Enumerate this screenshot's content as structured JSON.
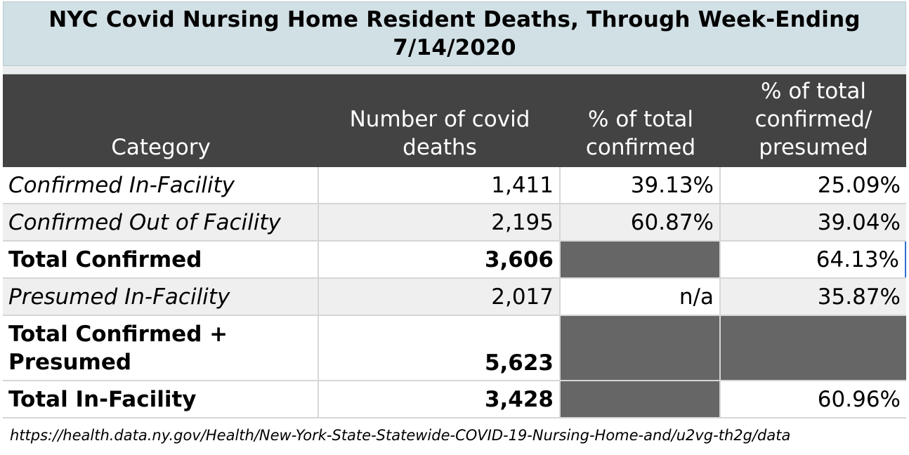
{
  "chart_data": {
    "type": "table",
    "title_line1": "NYC Covid Nursing Home Resident Deaths, Through Week-Ending",
    "title_line2": "7/14/2020",
    "columns": {
      "category": "Category",
      "deaths_line1": "Number of covid",
      "deaths_line2": "deaths",
      "pct_confirmed_line1": "% of total",
      "pct_confirmed_line2": "confirmed",
      "pct_total_line1": "% of total",
      "pct_total_line2": "confirmed/",
      "pct_total_line3": "presumed"
    },
    "rows": [
      {
        "category": "Confirmed In-Facility",
        "deaths": "1,411",
        "pct_confirmed": "39.13%",
        "pct_total": "25.09%"
      },
      {
        "category": "Confirmed Out of Facility",
        "deaths": "2,195",
        "pct_confirmed": "60.87%",
        "pct_total": "39.04%"
      },
      {
        "category": "Total Confirmed",
        "deaths": "3,606",
        "pct_confirmed": "",
        "pct_total": "64.13%"
      },
      {
        "category": "Presumed In-Facility",
        "deaths": "2,017",
        "pct_confirmed": "n/a",
        "pct_total": "35.87%"
      },
      {
        "category_line1": "Total Confirmed +",
        "category_line2": "Presumed",
        "deaths": "5,623",
        "pct_confirmed": "",
        "pct_total": ""
      },
      {
        "category": "Total In-Facility",
        "deaths": "3,428",
        "pct_confirmed": "",
        "pct_total": "60.96%"
      }
    ],
    "source": "https://health.data.ny.gov/Health/New-York-State-Statewide-COVID-19-Nursing-Home-and/u2vg-th2g/data"
  },
  "colors": {
    "title_bg": "#d1e0e5",
    "header_bg": "#434343",
    "filler_bg": "#666666",
    "stripe_bg": "#efefef"
  }
}
